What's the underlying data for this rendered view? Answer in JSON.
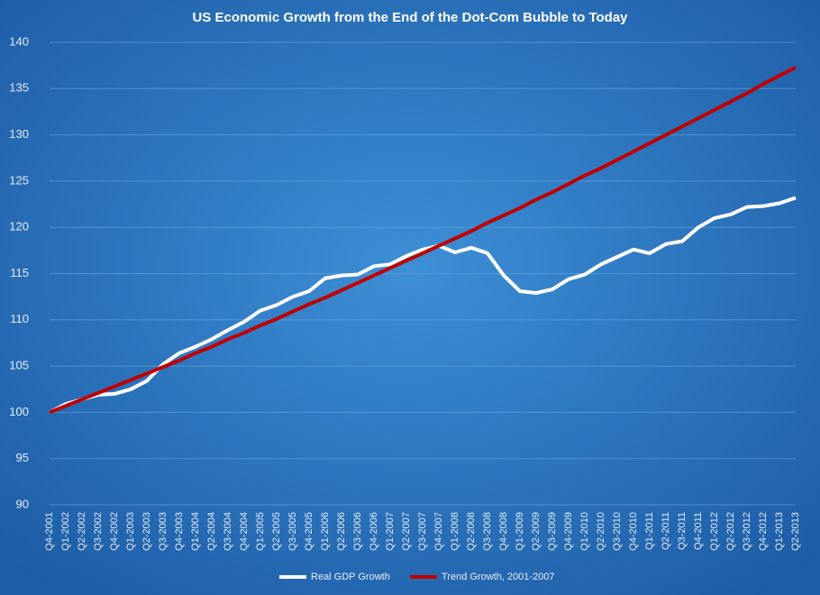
{
  "chart_data": {
    "type": "line",
    "title": "US Economic Growth from the End of the Dot-Com Bubble to Today",
    "categories": [
      "Q4-2001",
      "Q1-2002",
      "Q2-2002",
      "Q3-2002",
      "Q4-2002",
      "Q1-2003",
      "Q2-2003",
      "Q3-2003",
      "Q4-2003",
      "Q1-2004",
      "Q2-2004",
      "Q3-2004",
      "Q4-2004",
      "Q1-2005",
      "Q2-2005",
      "Q3-2005",
      "Q4-2005",
      "Q1-2006",
      "Q2-2006",
      "Q3-2006",
      "Q4-2006",
      "Q1-2007",
      "Q2-2007",
      "Q3-2007",
      "Q4-2007",
      "Q1-2008",
      "Q2-2008",
      "Q3-2008",
      "Q4-2008",
      "Q1-2009",
      "Q2-2009",
      "Q3-2009",
      "Q4-2009",
      "Q1-2010",
      "Q2-2010",
      "Q3-2010",
      "Q4-2010",
      "Q1-2011",
      "Q2-2011",
      "Q3-2011",
      "Q4-2011",
      "Q1-2012",
      "Q2-2012",
      "Q3-2012",
      "Q4-2012",
      "Q1-2013",
      "Q2-2013"
    ],
    "series": [
      {
        "name": "Real GDP Growth",
        "color": "#ffffff",
        "values": [
          100.0,
          100.9,
          101.4,
          101.9,
          102.0,
          102.5,
          103.4,
          105.2,
          106.4,
          107.1,
          107.9,
          108.9,
          109.8,
          111.0,
          111.6,
          112.5,
          113.1,
          114.5,
          114.8,
          114.9,
          115.8,
          116.0,
          116.9,
          117.6,
          118.0,
          117.3,
          117.8,
          117.2,
          114.8,
          113.1,
          112.9,
          113.3,
          114.4,
          114.9,
          116.0,
          116.8,
          117.6,
          117.2,
          118.2,
          118.5,
          120.0,
          121.0,
          121.4,
          122.2,
          122.3,
          122.6,
          123.2
        ]
      },
      {
        "name": "Trend Growth, 2001-2007",
        "color": "#c00000",
        "values": [
          100.0,
          100.7,
          101.4,
          102.1,
          102.8,
          103.5,
          104.2,
          104.9,
          105.6,
          106.4,
          107.1,
          107.9,
          108.6,
          109.4,
          110.1,
          110.9,
          111.7,
          112.4,
          113.2,
          114.0,
          114.8,
          115.6,
          116.4,
          117.2,
          118.0,
          118.8,
          119.6,
          120.5,
          121.3,
          122.1,
          123.0,
          123.8,
          124.7,
          125.6,
          126.4,
          127.3,
          128.2,
          129.1,
          130.0,
          130.9,
          131.8,
          132.7,
          133.6,
          134.5,
          135.5,
          136.4,
          137.3
        ]
      }
    ],
    "ylim": [
      90,
      140
    ],
    "yticks": [
      90,
      95,
      100,
      105,
      110,
      115,
      120,
      125,
      130,
      135,
      140
    ],
    "grid": true,
    "legend": "bottom"
  }
}
